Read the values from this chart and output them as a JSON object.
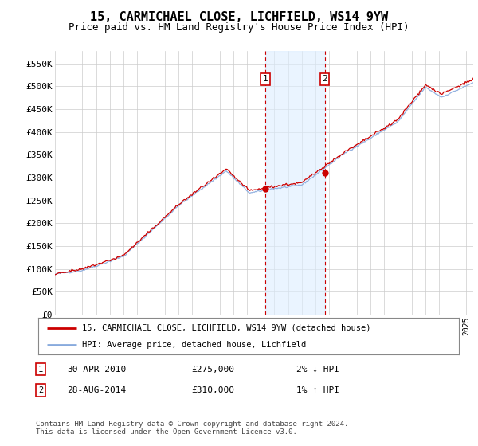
{
  "title": "15, CARMICHAEL CLOSE, LICHFIELD, WS14 9YW",
  "subtitle": "Price paid vs. HM Land Registry's House Price Index (HPI)",
  "ylabel_ticks": [
    "£0",
    "£50K",
    "£100K",
    "£150K",
    "£200K",
    "£250K",
    "£300K",
    "£350K",
    "£400K",
    "£450K",
    "£500K",
    "£550K"
  ],
  "ytick_vals": [
    0,
    50000,
    100000,
    150000,
    200000,
    250000,
    300000,
    350000,
    400000,
    450000,
    500000,
    550000
  ],
  "ylim": [
    0,
    577000
  ],
  "xlim_start": 1995.0,
  "xlim_end": 2025.5,
  "xtick_years": [
    1995,
    1996,
    1997,
    1998,
    1999,
    2000,
    2001,
    2002,
    2003,
    2004,
    2005,
    2006,
    2007,
    2008,
    2009,
    2010,
    2011,
    2012,
    2013,
    2014,
    2015,
    2016,
    2017,
    2018,
    2019,
    2020,
    2021,
    2022,
    2023,
    2024,
    2025
  ],
  "transaction1_x": 2010.33,
  "transaction1_y": 275000,
  "transaction2_x": 2014.67,
  "transaction2_y": 310000,
  "transaction1_label": "1",
  "transaction2_label": "2",
  "shaded_color": "#ddeeff",
  "shaded_alpha": 0.6,
  "vline_color": "#cc0000",
  "box_color": "#cc0000",
  "hpi_line_color": "#88aadd",
  "house_line_color": "#cc0000",
  "legend_label1": "15, CARMICHAEL CLOSE, LICHFIELD, WS14 9YW (detached house)",
  "legend_label2": "HPI: Average price, detached house, Lichfield",
  "ann1_date": "30-APR-2010",
  "ann1_price": "£275,000",
  "ann1_hpi": "2% ↓ HPI",
  "ann2_date": "28-AUG-2014",
  "ann2_price": "£310,000",
  "ann2_hpi": "1% ↑ HPI",
  "footer": "Contains HM Land Registry data © Crown copyright and database right 2024.\nThis data is licensed under the Open Government Licence v3.0.",
  "bg_color": "#ffffff",
  "grid_color": "#cccccc",
  "title_fontsize": 11,
  "subtitle_fontsize": 9
}
